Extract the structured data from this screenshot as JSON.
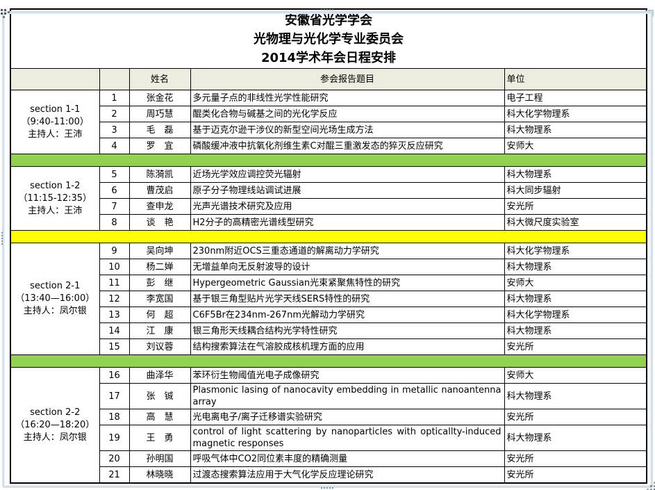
{
  "page": {
    "title_lines": [
      "安徽省光学学会",
      "光物理与光化学专业委员会",
      "2014学术年会日程安排"
    ]
  },
  "table": {
    "headers": [
      "",
      "",
      "姓名",
      "参会报告题目",
      "单位"
    ],
    "colors": {
      "green_separator": "#92d050",
      "yellow_separator": "#ffff00",
      "header_bg": "#edecdf",
      "border": "#000000"
    },
    "sections": [
      {
        "label_lines": [
          "section 1-1",
          "（9:40-11:00）",
          "主持人：王沛"
        ],
        "separator_after": "green",
        "rows": [
          {
            "no": "1",
            "name": "张金花",
            "title": "多元量子点的非线性光学性能研究",
            "unit": "电子工程"
          },
          {
            "no": "2",
            "name": "周巧慧",
            "title": "醌类化合物与碱基之间的光化学反应",
            "unit": "科大化学物理系"
          },
          {
            "no": "3",
            "name": "毛　磊",
            "title": "基于迈克尔逊干涉仪的新型空间光场生成方法",
            "unit": "科大物理系"
          },
          {
            "no": "4",
            "name": "罗　宜",
            "title": "磷酸缓冲液中抗氧化剂维生素C对醌三重激发态的猝灭反应研究",
            "unit": "安师大"
          }
        ]
      },
      {
        "label_lines": [
          "section 1-2",
          "（11:15-12:35）",
          "主持人：王沛"
        ],
        "separator_after": "yellow",
        "rows": [
          {
            "no": "5",
            "name": "陈漪凯",
            "title": "近场光学效应调控荧光辐射",
            "unit": "科大物理系"
          },
          {
            "no": "6",
            "name": "曹茂启",
            "title": "原子分子物理线站调试进展",
            "unit": "科大同步辐射"
          },
          {
            "no": "7",
            "name": "查申龙",
            "title": "光声光谱技术研究及应用",
            "unit": "安光所"
          },
          {
            "no": "8",
            "name": "谈　艳",
            "title": "H2分子的高精密光谱线型研究",
            "unit": "科大微尺度实验室"
          }
        ]
      },
      {
        "label_lines": [
          "section 2-1",
          "（13:40—16:00）",
          "主持人：凤尔银"
        ],
        "separator_after": "green",
        "rows": [
          {
            "no": "9",
            "name": "吴向坤",
            "title": "230nm附近OCS三重态通道的解离动力学研究",
            "unit": "科大化学物理系"
          },
          {
            "no": "10",
            "name": "杨二婵",
            "title": "无增益单向无反射波导的设计",
            "unit": "科大物理系"
          },
          {
            "no": "11",
            "name": "彭　继",
            "title": "Hypergeometric Gaussian光束紧聚焦特性的研究",
            "unit": "安师大"
          },
          {
            "no": "12",
            "name": "李宽国",
            "title": "基于银三角型贴片光学天线SERS特性的研究",
            "unit": "科大物理系"
          },
          {
            "no": "13",
            "name": "何　超",
            "title": "C6F5Br在234nm-267nm光解动力学研究",
            "unit": "科大化学物理系"
          },
          {
            "no": "14",
            "name": "江　康",
            "title": "银三角形天线耦合结构光学特性研究",
            "unit": "科大物理系"
          },
          {
            "no": "15",
            "name": "刘议蓉",
            "title": "结构搜索算法在气溶胶成核机理方面的应用",
            "unit": "安光所"
          }
        ]
      },
      {
        "label_lines": [
          "section 2-2",
          "（16:20—18:20）",
          "主持人：凤尔银"
        ],
        "separator_after": null,
        "rows": [
          {
            "no": "16",
            "name": "曲泽华",
            "title": "苯环衍生物阈值光电子成像研究",
            "unit": "安师大"
          },
          {
            "no": "17",
            "name": "张　铖",
            "title": "Plasmonic lasing of nanocavity embedding in metallic nanoantenna array",
            "unit": "科大物理系",
            "justify": true
          },
          {
            "no": "18",
            "name": "高　慧",
            "title": "光电离电子/离子迁移谱实验研究",
            "unit": "安光所"
          },
          {
            "no": "19",
            "name": "王　勇",
            "title": "control of light scattering by nanoparticles with opticallty-induced magnetic responses",
            "unit": "科大物理系",
            "justify": true
          },
          {
            "no": "20",
            "name": "孙明国",
            "title": "呼吸气体中CO2同位素丰度的精确测量",
            "unit": "安光所"
          },
          {
            "no": "21",
            "name": "林晓晓",
            "title": "过渡态搜索算法应用于大气化学反应理论研究",
            "unit": "安光所"
          }
        ]
      }
    ]
  }
}
